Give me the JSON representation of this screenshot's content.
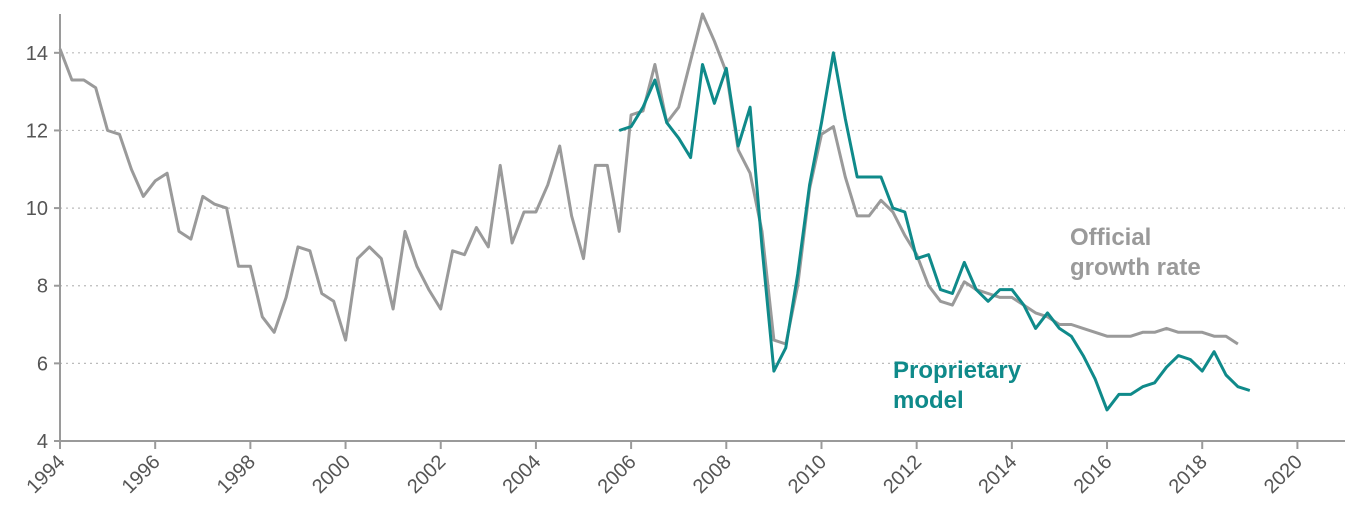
{
  "chart_data": {
    "type": "line",
    "xlim": [
      1994,
      2021
    ],
    "xticks": [
      1994,
      1996,
      1998,
      2000,
      2002,
      2004,
      2006,
      2008,
      2010,
      2012,
      2014,
      2016,
      2018,
      2020
    ],
    "ylim": [
      4,
      15
    ],
    "yticks": [
      4,
      6,
      8,
      10,
      12,
      14
    ],
    "grid": true,
    "series": [
      {
        "name": "Official growth rate",
        "color": "#9a9a9a",
        "x": [
          1994.0,
          1994.25,
          1994.5,
          1994.75,
          1995.0,
          1995.25,
          1995.5,
          1995.75,
          1996.0,
          1996.25,
          1996.5,
          1996.75,
          1997.0,
          1997.25,
          1997.5,
          1997.75,
          1998.0,
          1998.25,
          1998.5,
          1998.75,
          1999.0,
          1999.25,
          1999.5,
          1999.75,
          2000.0,
          2000.25,
          2000.5,
          2000.75,
          2001.0,
          2001.25,
          2001.5,
          2001.75,
          2002.0,
          2002.25,
          2002.5,
          2002.75,
          2003.0,
          2003.25,
          2003.5,
          2003.75,
          2004.0,
          2004.25,
          2004.5,
          2004.75,
          2005.0,
          2005.25,
          2005.5,
          2005.75,
          2006.0,
          2006.25,
          2006.5,
          2006.75,
          2007.0,
          2007.25,
          2007.5,
          2007.75,
          2008.0,
          2008.25,
          2008.5,
          2008.75,
          2009.0,
          2009.25,
          2009.5,
          2009.75,
          2010.0,
          2010.25,
          2010.5,
          2010.75,
          2011.0,
          2011.25,
          2011.5,
          2011.75,
          2012.0,
          2012.25,
          2012.5,
          2012.75,
          2013.0,
          2013.25,
          2013.5,
          2013.75,
          2014.0,
          2014.25,
          2014.5,
          2014.75,
          2015.0,
          2015.25,
          2015.5,
          2015.75,
          2016.0,
          2016.25,
          2016.5,
          2016.75,
          2017.0,
          2017.25,
          2017.5,
          2017.75,
          2018.0,
          2018.25,
          2018.5,
          2018.75
        ],
        "values": [
          14.1,
          13.3,
          13.3,
          13.1,
          12.0,
          11.9,
          11.0,
          10.3,
          10.7,
          10.9,
          9.4,
          9.2,
          10.3,
          10.1,
          10.0,
          8.5,
          8.5,
          7.2,
          6.8,
          7.7,
          9.0,
          8.9,
          7.8,
          7.6,
          6.6,
          8.7,
          9.0,
          8.7,
          7.4,
          9.4,
          8.5,
          7.9,
          7.4,
          8.9,
          8.8,
          9.5,
          9.0,
          11.1,
          9.1,
          9.9,
          9.9,
          10.6,
          11.6,
          9.8,
          8.7,
          11.1,
          11.1,
          9.4,
          12.4,
          12.5,
          13.7,
          12.2,
          12.6,
          13.8,
          15.0,
          14.3,
          13.5,
          11.5,
          10.9,
          9.4,
          6.6,
          6.5,
          8.0,
          10.5,
          11.9,
          12.1,
          10.8,
          9.8,
          9.8,
          10.2,
          9.9,
          9.3,
          8.8,
          8.0,
          7.6,
          7.5,
          8.1,
          7.9,
          7.8,
          7.7,
          7.7,
          7.5,
          7.3,
          7.2,
          7.0,
          7.0,
          6.9,
          6.8,
          6.7,
          6.7,
          6.7,
          6.8,
          6.8,
          6.9,
          6.8,
          6.8,
          6.8,
          6.7,
          6.7,
          6.5
        ]
      },
      {
        "name": "Proprietary model",
        "color": "#0f8a8a",
        "x": [
          2005.75,
          2006.0,
          2006.25,
          2006.5,
          2006.75,
          2007.0,
          2007.25,
          2007.5,
          2007.75,
          2008.0,
          2008.25,
          2008.5,
          2008.75,
          2009.0,
          2009.25,
          2009.5,
          2009.75,
          2010.0,
          2010.25,
          2010.5,
          2010.75,
          2011.0,
          2011.25,
          2011.5,
          2011.75,
          2012.0,
          2012.25,
          2012.5,
          2012.75,
          2013.0,
          2013.25,
          2013.5,
          2013.75,
          2014.0,
          2014.25,
          2014.5,
          2014.75,
          2015.0,
          2015.25,
          2015.5,
          2015.75,
          2016.0,
          2016.25,
          2016.5,
          2016.75,
          2017.0,
          2017.25,
          2017.5,
          2017.75,
          2018.0,
          2018.25,
          2018.5,
          2018.75,
          2019.0
        ],
        "values": [
          12.0,
          12.1,
          12.6,
          13.3,
          12.2,
          11.8,
          11.3,
          13.7,
          12.7,
          13.6,
          11.6,
          12.6,
          9.0,
          5.8,
          6.4,
          8.3,
          10.6,
          12.2,
          14.0,
          12.3,
          10.8,
          10.8,
          10.8,
          10.0,
          9.9,
          8.7,
          8.8,
          7.9,
          7.8,
          8.6,
          7.9,
          7.6,
          7.9,
          7.9,
          7.5,
          6.9,
          7.3,
          6.9,
          6.7,
          6.2,
          5.6,
          4.8,
          5.2,
          5.2,
          5.4,
          5.5,
          5.9,
          6.2,
          6.1,
          5.8,
          6.3,
          5.7,
          5.4,
          5.3
        ]
      }
    ]
  }
}
